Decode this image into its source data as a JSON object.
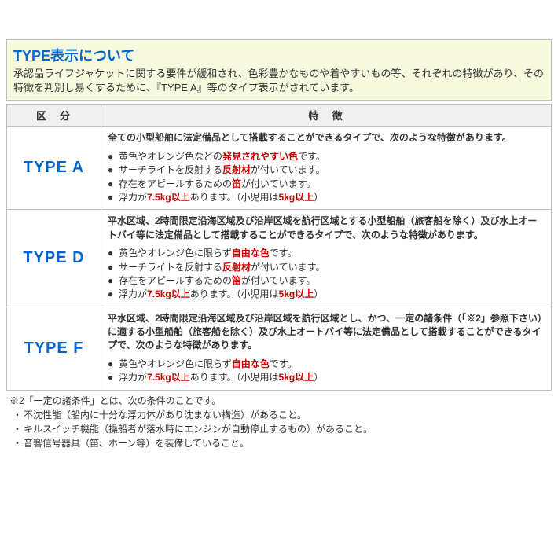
{
  "colors": {
    "accent_blue": "#0066cc",
    "accent_red": "#cc0000",
    "header_bg": "#f7f9de",
    "border": "#bfbfbf",
    "th_bg": "#f0f0f0",
    "text": "#333333"
  },
  "header": {
    "title": "TYPE表示について",
    "desc": "承認品ライフジャケットに関する要件が緩和され、色彩豊かなものや着やすいもの等、それぞれの特徴があり、その特徴を判別し易くするために、『TYPE A』等のタイプ表示がされています。"
  },
  "table": {
    "col1": "区　分",
    "col2": "特　徴",
    "rows": [
      {
        "type": "TYPE A",
        "intro": "全ての小型船舶に法定備品として搭載することができるタイプで、次のような特徴があります。",
        "bullets": [
          {
            "pre": "黄色やオレンジ色などの",
            "red": "発見されやすい色",
            "post": "です。"
          },
          {
            "pre": "サーチライトを反射する",
            "red": "反射材",
            "post": "が付いています。"
          },
          {
            "pre": "存在をアピールするための",
            "red": "笛",
            "post": "が付いています。"
          },
          {
            "pre": "浮力が",
            "red": "7.5kg以上",
            "post": "あります。（小児用は",
            "red2": "5kg以上",
            "post2": "）"
          }
        ]
      },
      {
        "type": "TYPE D",
        "intro": "平水区域、2時間限定沿海区域及び沿岸区域を航行区域とする小型船舶（旅客船を除く）及び水上オートバイ等に法定備品として搭載することができるタイプで、次のような特徴があります。",
        "bullets": [
          {
            "pre": "黄色やオレンジ色に限らず",
            "red": "自由な色",
            "post": "です。"
          },
          {
            "pre": "サーチライトを反射する",
            "red": "反射材",
            "post": "が付いています。"
          },
          {
            "pre": "存在をアピールするための",
            "red": "笛",
            "post": "が付いています。"
          },
          {
            "pre": "浮力が",
            "red": "7.5kg以上",
            "post": "あります。（小児用は",
            "red2": "5kg以上",
            "post2": "）"
          }
        ]
      },
      {
        "type": "TYPE F",
        "intro": "平水区域、2時間限定沿海区域及び沿岸区域を航行区域とし、かつ、一定の諸条件（「※2」参照下さい）に適する小型船舶（旅客船を除く）及び水上オートバイ等に法定備品として搭載することができるタイプで、次のような特徴があります。",
        "bullets": [
          {
            "pre": "黄色やオレンジ色に限らず",
            "red": "自由な色",
            "post": "です。"
          },
          {
            "pre": "浮力が",
            "red": "7.5kg以上",
            "post": "あります。（小児用は",
            "red2": "5kg以上",
            "post2": "）"
          }
        ]
      }
    ]
  },
  "footnote": {
    "lead": "※2「一定の諸条件」とは、次の条件のことです。",
    "items": [
      "不沈性能（船内に十分な浮力体があり沈まない構造）があること。",
      "キルスイッチ機能（操船者が落水時にエンジンが自動停止するもの）があること。",
      "音響信号器具（笛、ホーン等）を装備していること。"
    ]
  }
}
